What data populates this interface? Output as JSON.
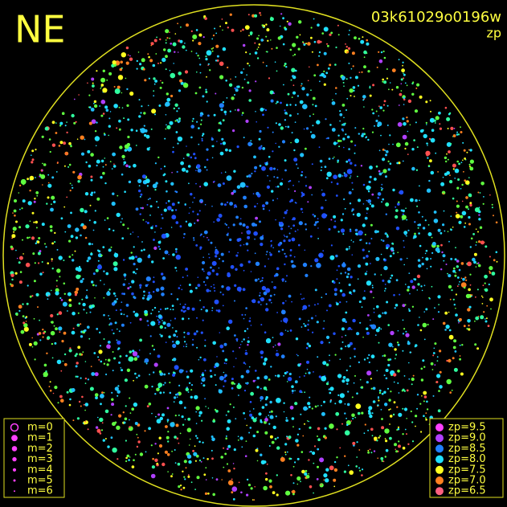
{
  "header": {
    "corner": "NE",
    "frame": "03k61029o0196w",
    "quantity": "zp"
  },
  "magnitude_legend": [
    "m=0",
    "m=1",
    "m=2",
    "m=3",
    "m=4",
    "m=5",
    "m=6"
  ],
  "zp_legend": [
    {
      "label": "zp=9.5",
      "color": "#ff40ff"
    },
    {
      "label": "zp=9.0",
      "color": "#b040ff"
    },
    {
      "label": "zp=8.5",
      "color": "#2080ff"
    },
    {
      "label": "zp=8.0",
      "color": "#20e0ff"
    },
    {
      "label": "zp=7.5",
      "color": "#ffff20"
    },
    {
      "label": "zp=7.0",
      "color": "#ff8020"
    },
    {
      "label": "zp=6.5",
      "color": "#ff6080"
    }
  ]
}
